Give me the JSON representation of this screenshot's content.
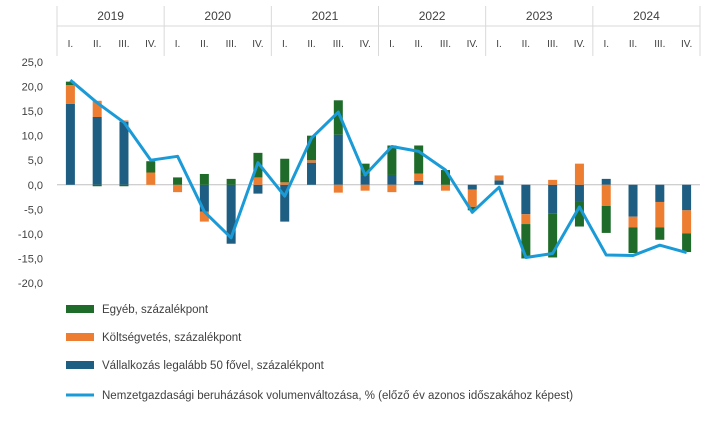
{
  "chart_data": {
    "type": "bar",
    "quarters": [
      "I.",
      "II.",
      "III.",
      "IV."
    ],
    "years": [
      "2019",
      "2020",
      "2021",
      "2022",
      "2023",
      "2024"
    ],
    "ylim": [
      -20,
      25
    ],
    "yticks": [
      "25,0",
      "20,0",
      "15,0",
      "10,0",
      "5,0",
      "0,0",
      "-5,0",
      "-10,0",
      "-15,0",
      "-20,0"
    ],
    "ytick_values": [
      25,
      20,
      15,
      10,
      5,
      0,
      -5,
      -10,
      -15,
      -20
    ],
    "series": [
      {
        "name": "Egyéb, százalékpont",
        "color": "#1e6b2a",
        "values": [
          0.7,
          -0.3,
          -0.3,
          2.3,
          1.5,
          2.2,
          1.2,
          5.0,
          4.8,
          5.0,
          7.0,
          2.5,
          6.0,
          5.7,
          3.0,
          -0.7,
          0.0,
          -7.0,
          -9.0,
          -5.0,
          -5.5,
          -5.2,
          -2.5,
          -3.8
        ]
      },
      {
        "name": "Költségvetés, százalékpont",
        "color": "#ed7d31",
        "values": [
          3.8,
          3.3,
          0.3,
          2.5,
          -1.5,
          -2.0,
          0.0,
          1.5,
          0.5,
          0.5,
          -1.6,
          -1.2,
          -1.5,
          1.5,
          -1.2,
          -3.5,
          1.0,
          -2.0,
          1.0,
          4.3,
          -4.3,
          -2.2,
          -5.2,
          -4.7
        ]
      },
      {
        "name": "Vállalkozás legalább 50 fővel, százalékpont",
        "color": "#1d5e82",
        "values": [
          16.5,
          13.8,
          12.8,
          0.0,
          0.0,
          -5.5,
          -12.0,
          -1.8,
          -7.5,
          4.5,
          10.2,
          1.8,
          2.0,
          0.8,
          0.0,
          -1.0,
          0.9,
          -6.0,
          -5.8,
          -3.5,
          1.2,
          -6.5,
          -3.5,
          -5.2
        ]
      }
    ],
    "line": {
      "name": "Nemzetgazdasági beruházások volumenváltozása, % (előző év azonos időszakához képest)",
      "color": "#1a9bd7",
      "values": [
        21.3,
        16.7,
        12.7,
        5.0,
        5.8,
        -5.5,
        -10.8,
        4.5,
        -2.3,
        9.5,
        14.8,
        2.0,
        7.8,
        6.8,
        3.0,
        -5.6,
        -0.5,
        -14.8,
        -14.0,
        -4.5,
        -14.3,
        -14.4,
        -12.3,
        -13.8
      ]
    }
  }
}
